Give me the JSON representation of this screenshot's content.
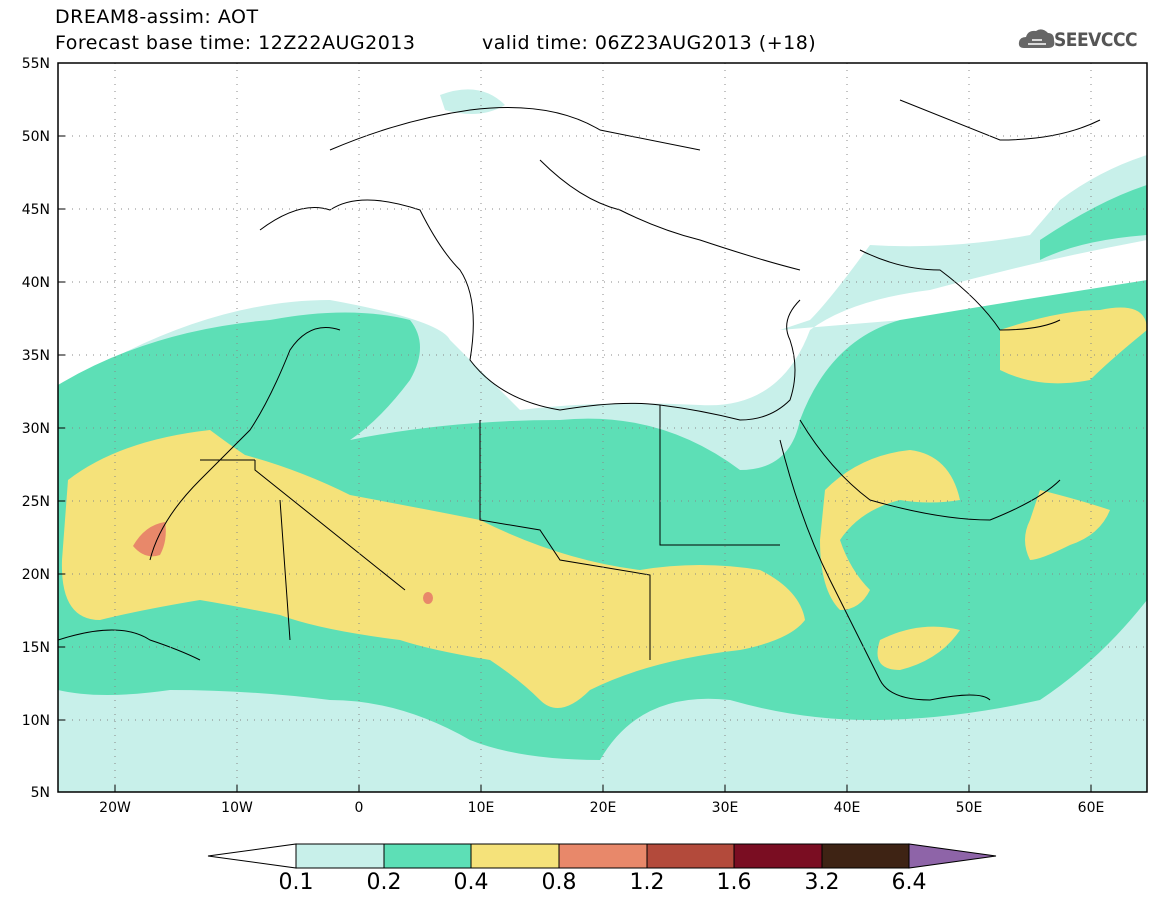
{
  "title": {
    "line1": "DREAM8-assim: AOT",
    "base_time": "Forecast base time: 12Z22AUG2013",
    "valid_time": "valid time: 06Z23AUG2013 (+18)"
  },
  "logo": {
    "text": "SEEVCCC",
    "icon": "cloud-icon"
  },
  "map": {
    "lat_labels": [
      "55N",
      "50N",
      "45N",
      "40N",
      "35N",
      "30N",
      "25N",
      "20N",
      "15N",
      "10N",
      "5N"
    ],
    "lon_labels": [
      "20W",
      "10W",
      "0",
      "10E",
      "20E",
      "30E",
      "40E",
      "50E",
      "60E"
    ]
  },
  "colorbar": {
    "labels": [
      "0.1",
      "0.2",
      "0.4",
      "0.8",
      "1.2",
      "1.6",
      "3.2",
      "6.4"
    ],
    "colors": [
      "#c8f0ea",
      "#5ddfb6",
      "#f5e27a",
      "#e8886a",
      "#b34a3b",
      "#7a0d22",
      "#3e2314",
      "#8e64a8"
    ]
  },
  "colors": {
    "low": "#c8f0ea",
    "mid": "#5ddfb6",
    "high": "#f5e27a",
    "very_high": "#e8886a"
  }
}
